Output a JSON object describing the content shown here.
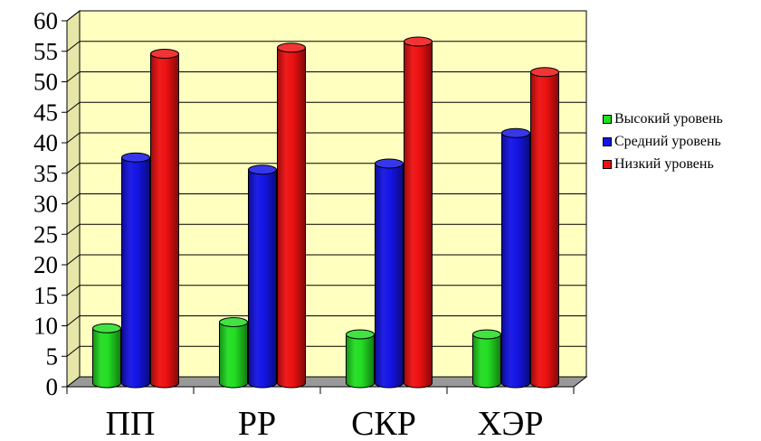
{
  "chart_data": {
    "type": "bar",
    "categories": [
      "ПП",
      "РР",
      "СКР",
      "ХЭР"
    ],
    "series": [
      {
        "name": "Высокий уровень",
        "values": [
          9,
          10,
          8,
          8
        ],
        "color": "#22dd22"
      },
      {
        "name": "Средний уровень",
        "values": [
          37,
          35,
          36,
          41
        ],
        "color": "#1414e6"
      },
      {
        "name": "Низкий уровень",
        "values": [
          54,
          55,
          56,
          51
        ],
        "color": "#ee1111"
      }
    ],
    "ylim": [
      0,
      60
    ],
    "yticks": [
      "0",
      "5",
      "10",
      "15",
      "20",
      "25",
      "30",
      "35",
      "40",
      "45",
      "50",
      "55",
      "60"
    ],
    "grid": true,
    "style": "3d-cylinder",
    "legend_position": "right",
    "wall_color": "#ffffc0",
    "floor_color": "#999999"
  }
}
